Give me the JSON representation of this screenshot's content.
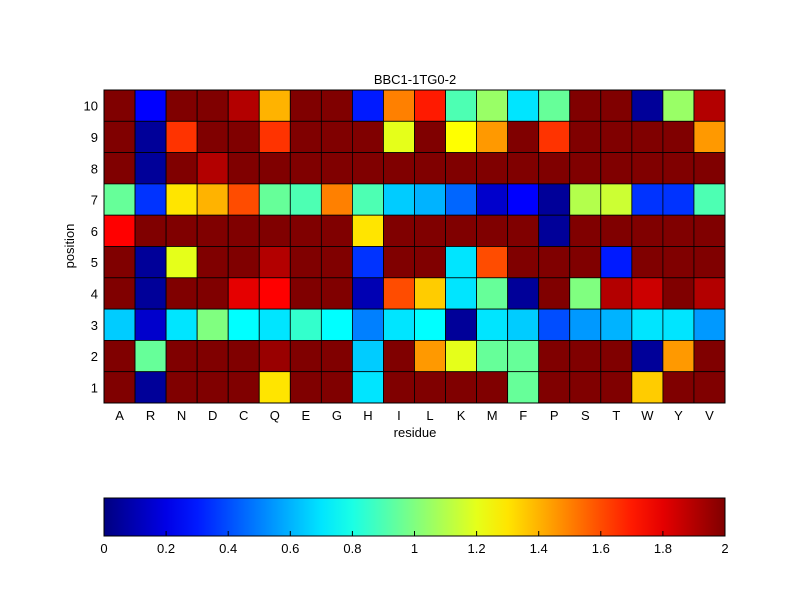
{
  "chart_data": {
    "type": "heatmap",
    "title": "BBC1-1TG0-2",
    "xlabel": "residue",
    "ylabel": "position",
    "x_categories": [
      "A",
      "R",
      "N",
      "D",
      "C",
      "Q",
      "E",
      "G",
      "H",
      "I",
      "L",
      "K",
      "M",
      "F",
      "P",
      "S",
      "T",
      "W",
      "Y",
      "V"
    ],
    "y_categories": [
      "1",
      "2",
      "3",
      "4",
      "5",
      "6",
      "7",
      "8",
      "9",
      "10"
    ],
    "colormap": "jet",
    "vmin": 0,
    "vmax": 2,
    "colorbar_ticks": [
      "0",
      "0.2",
      "0.4",
      "0.6",
      "0.8",
      "1",
      "1.2",
      "1.4",
      "1.6",
      "1.8",
      "2"
    ],
    "rows": [
      {
        "position": "10",
        "values": [
          2,
          0.25,
          2,
          2,
          1.9,
          1.4,
          2,
          2,
          0.3,
          1.5,
          1.7,
          0.9,
          1.05,
          0.7,
          0.95,
          2,
          2,
          0.05,
          1.05,
          1.9
        ]
      },
      {
        "position": "9",
        "values": [
          2,
          0.05,
          1.65,
          2,
          2,
          1.65,
          2,
          2,
          2,
          1.2,
          2,
          1.25,
          1.45,
          2,
          1.65,
          2,
          2,
          2,
          2,
          1.45
        ]
      },
      {
        "position": "8",
        "values": [
          2,
          0.05,
          2,
          1.9,
          2,
          2,
          2,
          2,
          2,
          2,
          2,
          2,
          2,
          2,
          2,
          2,
          2,
          2,
          2,
          2
        ]
      },
      {
        "position": "7",
        "values": [
          0.95,
          0.35,
          1.3,
          1.4,
          1.6,
          0.95,
          0.9,
          1.5,
          0.9,
          0.65,
          0.6,
          0.45,
          0.15,
          0.25,
          0.05,
          1.1,
          1.15,
          0.35,
          0.35,
          0.9
        ]
      },
      {
        "position": "6",
        "values": [
          1.75,
          2,
          2,
          2,
          2,
          2,
          2,
          2,
          1.3,
          2,
          2,
          2,
          2,
          2,
          0.05,
          2,
          2,
          2,
          2,
          2
        ]
      },
      {
        "position": "5",
        "values": [
          2,
          0.05,
          1.2,
          2,
          2,
          1.9,
          2,
          2,
          0.35,
          2,
          2,
          0.7,
          1.6,
          2,
          2,
          2,
          0.3,
          2,
          2,
          2
        ]
      },
      {
        "position": "4",
        "values": [
          2,
          0.05,
          2,
          2,
          1.8,
          1.75,
          2,
          2,
          0.1,
          1.6,
          1.35,
          0.7,
          0.95,
          0.05,
          2,
          1.0,
          1.9,
          1.85,
          2,
          1.9
        ]
      },
      {
        "position": "3",
        "values": [
          0.65,
          0.15,
          0.7,
          1.0,
          0.75,
          0.7,
          0.85,
          0.75,
          0.5,
          0.7,
          0.75,
          0.05,
          0.7,
          0.65,
          0.4,
          0.55,
          0.6,
          0.7,
          0.7,
          0.55
        ]
      },
      {
        "position": "2",
        "values": [
          2,
          0.95,
          2,
          2,
          2,
          1.95,
          2,
          2,
          0.65,
          2,
          1.45,
          1.2,
          0.95,
          0.95,
          2,
          2,
          2,
          0.05,
          1.45,
          2
        ]
      },
      {
        "position": "1",
        "values": [
          2,
          0.05,
          2,
          2,
          2,
          1.3,
          2,
          2,
          0.7,
          2,
          2,
          2,
          2,
          0.95,
          2,
          2,
          2,
          1.35,
          2,
          2
        ]
      }
    ],
    "grid": false,
    "colorbar_placement": "bottom"
  }
}
